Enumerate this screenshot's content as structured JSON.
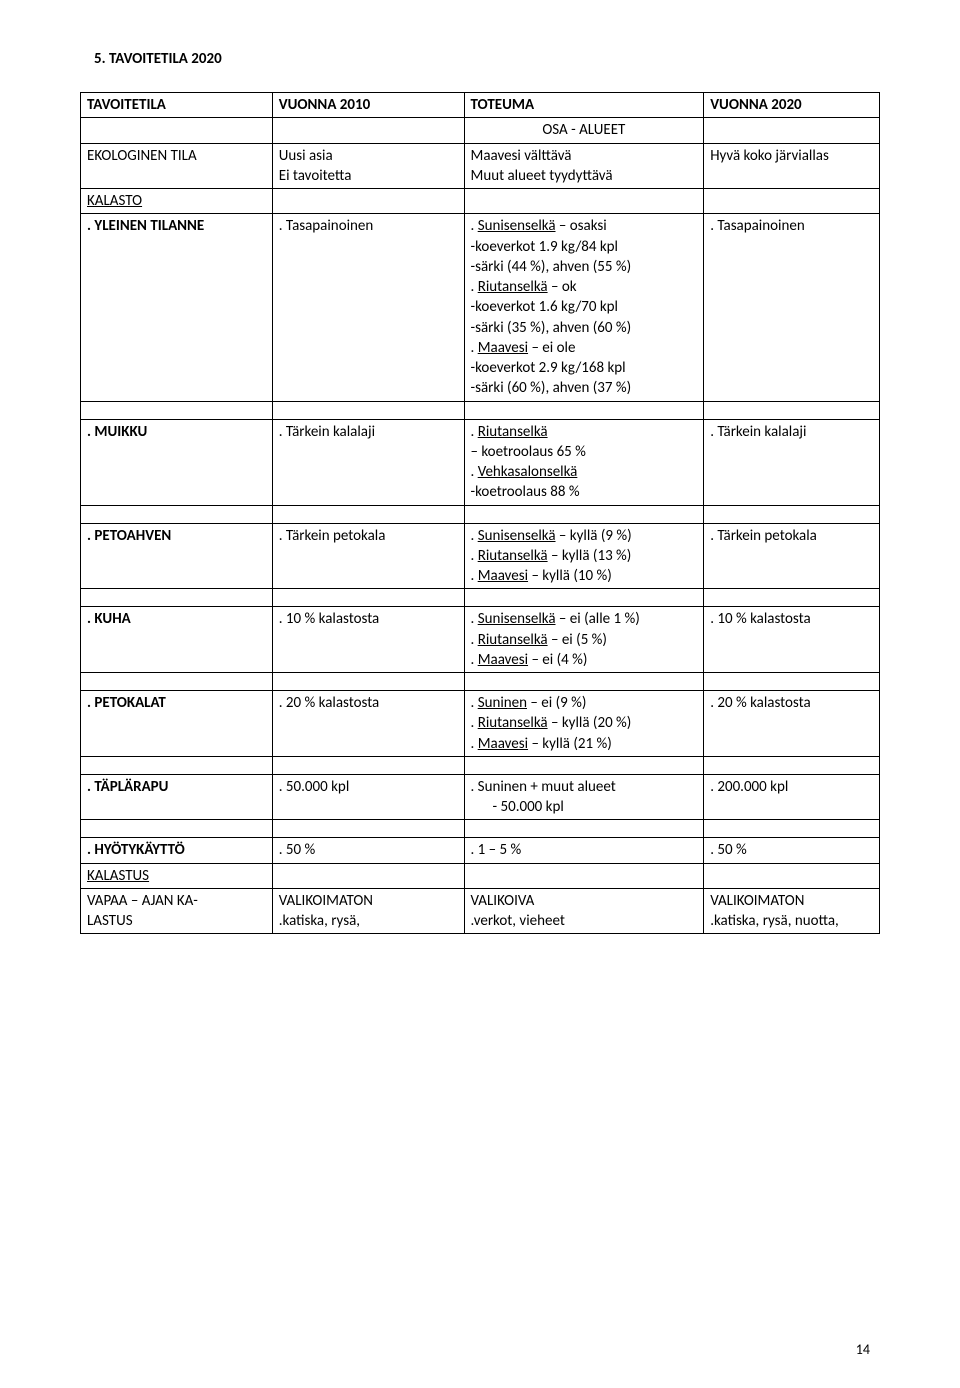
{
  "heading": "5.   TAVOITETILA 2020",
  "headers": {
    "c1": "TAVOITETILA",
    "c2": "VUONNA 2010",
    "c3": "TOTEUMA",
    "c4": "VUONNA 2020"
  },
  "osa_alueet": "OSA - ALUEET",
  "ekologinen": {
    "label": "EKOLOGINEN TILA",
    "v2010a": "Uusi asia",
    "v2010b": "Ei tavoitetta",
    "tota": "Maavesi välttävä",
    "totb": "Muut alueet tyydyttävä",
    "v2020": "Hyvä koko järviallas"
  },
  "kalasto": "KALASTO",
  "yleinen": {
    "label": ". YLEINEN TILANNE",
    "v2010": ". Tasapainoinen",
    "tot_l1a": ". ",
    "tot_l1b": "Sunisenselkä",
    "tot_l1c": " – osaksi",
    "tot_l2": "-koeverkot 1.9 kg/84 kpl",
    "tot_l3": "-särki (44 %), ahven (55 %)",
    "tot_l4a": ". ",
    "tot_l4b": "Riutanselkä",
    "tot_l4c": " – ok",
    "tot_l5": "-koeverkot 1.6 kg/70 kpl",
    "tot_l6": "-särki (35 %), ahven (60 %)",
    "tot_l7a": ". ",
    "tot_l7b": "Maavesi",
    "tot_l7c": " – ei ole",
    "tot_l8": "-koeverkot 2.9 kg/168 kpl",
    "tot_l9": "-särki (60 %), ahven (37 %)",
    "v2020": ". Tasapainoinen"
  },
  "muikku": {
    "label": ". MUIKKU",
    "v2010": ". Tärkein kalalaji",
    "tot_l1a": ". ",
    "tot_l1b": "Riutanselkä",
    "tot_l2": " – koetroolaus 65 %",
    "tot_l3a": ". ",
    "tot_l3b": "Vehkasalonselkä",
    "tot_l4": "-koetroolaus 88 %",
    "v2020": ". Tärkein kalalaji"
  },
  "petoahven": {
    "label": ". PETOAHVEN",
    "v2010": ". Tärkein petokala",
    "tot_l1a": ". ",
    "tot_l1b": "Sunisenselkä",
    "tot_l1c": " – kyllä (9 %)",
    "tot_l2a": ". ",
    "tot_l2b": "Riutanselkä",
    "tot_l2c": " – kyllä (13 %)",
    "tot_l3a": ". ",
    "tot_l3b": "Maavesi",
    "tot_l3c": " – kyllä (10 %)",
    "v2020": ". Tärkein petokala"
  },
  "kuha": {
    "label": ". KUHA",
    "v2010": ". 10 % kalastosta",
    "tot_l1a": ". ",
    "tot_l1b": "Sunisenselkä",
    "tot_l1c": " – ei (alle 1 %)",
    "tot_l2a": ". ",
    "tot_l2b": "Riutanselkä",
    "tot_l2c": " – ei (5 %)",
    "tot_l3a": ". ",
    "tot_l3b": "Maavesi",
    "tot_l3c": " – ei (4 %)",
    "v2020": ". 10 % kalastosta"
  },
  "petokalat": {
    "label": ". PETOKALAT",
    "v2010": ". 20 % kalastosta",
    "tot_l1a": ". ",
    "tot_l1b": "Suninen",
    "tot_l1c": " – ei (9 %)",
    "tot_l2a": ". ",
    "tot_l2b": "Riutanselkä",
    "tot_l2c": " – kyllä (20 %)",
    "tot_l3a": ". ",
    "tot_l3b": "Maavesi",
    "tot_l3c": " – kyllä (21 %)",
    "v2020": ". 20 % kalastosta"
  },
  "taplarapu": {
    "label": ". TÄPLÄRAPU",
    "v2010": ". 50.000 kpl",
    "tot_l1": ". Suninen + muut alueet",
    "tot_l2": "-    50.000 kpl",
    "v2020": ". 200.000 kpl"
  },
  "hyoty": {
    "label": ". HYÖTYKÄYTTÖ",
    "v2010": ". 50 %",
    "tot": ". 1 – 5 %",
    "v2020": ". 50 %"
  },
  "kalastus": "KALASTUS",
  "vapaa": {
    "label_l1": "VAPAA – AJAN KA-",
    "label_l2": "LASTUS",
    "v2010_l1": "VALIKOIMATON",
    "v2010_l2": ".katiska, rysä,",
    "tot_l1": "VALIKOIVA",
    "tot_l2": ".verkot, vieheet",
    "v2020_l1": "VALIKOIMATON",
    "v2020_l2": ".katiska, rysä, nuotta,"
  },
  "page_number": "14"
}
